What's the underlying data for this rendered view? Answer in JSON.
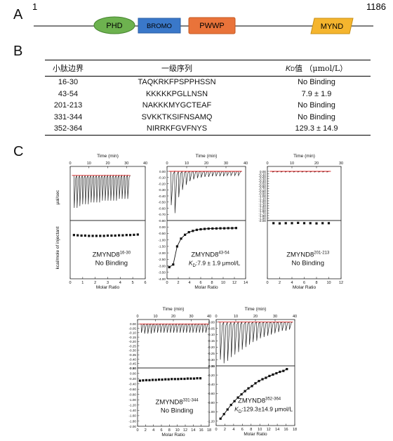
{
  "panels": {
    "a": "A",
    "b": "B",
    "c": "C"
  },
  "domain_map": {
    "start": "1",
    "end": "1186",
    "domains": [
      {
        "label": "PHD",
        "color": "#6db24f",
        "shape": "ellipse"
      },
      {
        "label": "BROMO",
        "color": "#3a78c9",
        "shape": "rect"
      },
      {
        "label": "PWWP",
        "color": "#e9733a",
        "shape": "rect"
      },
      {
        "label": "MYND",
        "color": "#f5b52e",
        "shape": "parallelogram"
      }
    ]
  },
  "table": {
    "headers": [
      "小肽边界",
      "一级序列",
      "值 （μmol/L）"
    ],
    "kd_symbol": "K",
    "kd_sub": "D",
    "rows": [
      [
        "16-30",
        "TAQKRKFPSPPHSSN",
        "No Binding"
      ],
      [
        "43-54",
        "KKKKKPGLLNSN",
        "7.9 ± 1.9"
      ],
      [
        "201-213",
        "NAKKKMYGCTEAF",
        "No Binding"
      ],
      [
        "331-344",
        "SVKKTKSIFNSAMQ",
        "No Binding"
      ],
      [
        "352-364",
        "NIRRKFGVFNYS",
        "129.3 ± 14.9"
      ]
    ]
  },
  "itc": {
    "top_xlabel": "Time (min)",
    "bottom_xlabel": "Molar Ratio",
    "top_ylabel": "μal/sec",
    "bottom_ylabel": "kcal/mole of injectant",
    "plots": [
      {
        "id": "p1",
        "label": "ZMYND8",
        "sup": "16-30",
        "result": "No Binding",
        "kd": ""
      },
      {
        "id": "p2",
        "label": "ZMYND8",
        "sup": "43-54",
        "result": "",
        "kd": ":7.9 ± 1.9 μmol/L"
      },
      {
        "id": "p3",
        "label": "ZMYND8",
        "sup": "201-213",
        "result": "No Binding",
        "kd": ""
      },
      {
        "id": "p4",
        "label": "ZMYND8",
        "sup": "331-344",
        "result": "No Binding",
        "kd": ""
      },
      {
        "id": "p5",
        "label": "ZMYND8",
        "sup": "352-364",
        "result": "",
        "kd": ":129.3±14.9 μmol/L"
      }
    ]
  },
  "chart_data": [
    {
      "type": "line",
      "id": "p1",
      "time_range": [
        0,
        40
      ],
      "time_ticks": [
        0,
        10,
        20,
        30,
        40
      ],
      "raw_ylim": [
        -0.25,
        0.05
      ],
      "raw_ticks": [],
      "ratio_range": [
        0,
        6
      ],
      "ratio_ticks": [
        0,
        1,
        2,
        3,
        4,
        5,
        6
      ],
      "heat_ylim": [
        -2.0,
        0.2
      ],
      "heat_ticks": [],
      "injections": {
        "start": 2,
        "step": 1.5,
        "count": 20
      },
      "peak_depths": [
        -0.18,
        -0.18,
        -0.17,
        -0.16,
        -0.16,
        -0.16,
        -0.15,
        -0.15,
        -0.15,
        -0.15,
        -0.14,
        -0.14,
        -0.14,
        -0.14,
        -0.14,
        -0.14,
        -0.13,
        -0.13,
        -0.13,
        -0.13
      ],
      "heat_x": [
        0.3,
        0.6,
        0.9,
        1.2,
        1.5,
        1.8,
        2.1,
        2.4,
        2.7,
        3.0,
        3.3,
        3.6,
        3.9,
        4.2,
        4.5,
        4.8,
        5.1,
        5.4
      ],
      "heat_y": [
        -0.35,
        -0.36,
        -0.37,
        -0.37,
        -0.38,
        -0.38,
        -0.38,
        -0.38,
        -0.38,
        -0.37,
        -0.37,
        -0.37,
        -0.36,
        -0.36,
        -0.35,
        -0.35,
        -0.34,
        -0.33
      ],
      "fit": false
    },
    {
      "type": "line",
      "id": "p2",
      "time_range": [
        0,
        40
      ],
      "time_ticks": [
        0,
        10,
        20,
        30,
        40
      ],
      "raw_ylim": [
        -0.8,
        0.08
      ],
      "raw_ticks": [
        0.0,
        -0.1,
        -0.2,
        -0.3,
        -0.4,
        -0.5,
        -0.6,
        -0.7,
        -0.8
      ],
      "ratio_range": [
        0,
        14
      ],
      "ratio_ticks": [
        0,
        2,
        4,
        6,
        8,
        10,
        12,
        14
      ],
      "heat_ylim": [
        -4.0,
        0.5
      ],
      "heat_ticks": [
        0.0,
        -0.5,
        -1.0,
        -1.5,
        -2.0,
        -2.5,
        -3.0,
        -3.5,
        -4.0
      ],
      "injections": {
        "start": 2,
        "step": 1.9,
        "count": 19
      },
      "peak_depths": [
        -0.55,
        -0.68,
        -0.42,
        -0.3,
        -0.22,
        -0.16,
        -0.13,
        -0.11,
        -0.1,
        -0.09,
        -0.09,
        -0.08,
        -0.08,
        -0.08,
        -0.08,
        -0.07,
        -0.07,
        -0.07,
        -0.07
      ],
      "heat_x": [
        0.4,
        1.1,
        1.8,
        2.5,
        3.2,
        3.9,
        4.6,
        5.3,
        6.0,
        6.7,
        7.4,
        8.1,
        8.8,
        9.5,
        10.2,
        10.9,
        11.6,
        12.3
      ],
      "heat_y": [
        -3.1,
        -2.9,
        -1.5,
        -0.9,
        -0.6,
        -0.4,
        -0.3,
        -0.22,
        -0.18,
        -0.15,
        -0.13,
        -0.12,
        -0.11,
        -0.1,
        -0.1,
        -0.09,
        -0.09,
        -0.08
      ],
      "fit": true
    },
    {
      "type": "line",
      "id": "p3",
      "time_range": [
        0,
        30
      ],
      "time_ticks": [
        0,
        10,
        20,
        30
      ],
      "raw_ylim": [
        -2.0,
        0.2
      ],
      "raw_ticks": [
        0.0,
        -0.1,
        -0.2,
        -0.3,
        -0.4,
        -0.5,
        -0.6,
        -0.7,
        -0.8,
        -0.9,
        -1.0,
        -1.1,
        -1.2,
        -1.3,
        -1.4,
        -1.5,
        -1.6,
        -1.7,
        -1.8,
        -1.9,
        -2.0
      ],
      "ratio_range": [
        0,
        12
      ],
      "ratio_ticks": [
        0,
        2,
        4,
        6,
        8,
        10,
        12
      ],
      "heat_ylim": [
        -2.0,
        0.2
      ],
      "heat_ticks": [],
      "injections": {
        "start": 2,
        "step": 1.7,
        "count": 14
      },
      "peak_depths": [
        -0.03,
        -0.03,
        -0.03,
        -0.03,
        -0.03,
        -0.03,
        -0.03,
        -0.03,
        -0.03,
        -0.03,
        -0.03,
        -0.03,
        -0.03,
        -0.03
      ],
      "heat_x": [
        1,
        2,
        3,
        4,
        5,
        6,
        7,
        8,
        9,
        10
      ],
      "heat_y": [
        0.1,
        0.09,
        0.1,
        0.1,
        0.11,
        0.1,
        0.1,
        0.09,
        0.1,
        0.1
      ],
      "fit": false
    },
    {
      "type": "line",
      "id": "p4",
      "time_range": [
        0,
        40
      ],
      "time_ticks": [
        0,
        10,
        20,
        30,
        40
      ],
      "raw_ylim": [
        -0.5,
        0.05
      ],
      "raw_ticks": [
        0.0,
        -0.05,
        -0.1,
        -0.15,
        -0.2,
        -0.25,
        -0.3,
        -0.35,
        -0.4,
        -0.45,
        -0.5
      ],
      "ratio_range": [
        0,
        18
      ],
      "ratio_ticks": [
        0,
        2,
        4,
        6,
        8,
        10,
        12,
        14,
        16,
        18
      ],
      "heat_ylim": [
        -2.0,
        0.2
      ],
      "heat_ticks": [
        0.2,
        0.0,
        -0.2,
        -0.4,
        -0.6,
        -0.8,
        -1.0,
        -1.2,
        -1.4,
        -1.6,
        -1.8,
        -2.0
      ],
      "injections": {
        "start": 2,
        "step": 1.8,
        "count": 21
      },
      "peak_depths": [
        -0.1,
        -0.11,
        -0.11,
        -0.11,
        -0.1,
        -0.1,
        -0.1,
        -0.1,
        -0.1,
        -0.1,
        -0.1,
        -0.1,
        -0.1,
        -0.1,
        -0.1,
        -0.1,
        -0.1,
        -0.1,
        -0.1,
        -0.1,
        -0.1
      ],
      "heat_x": [
        0.6,
        1.4,
        2.2,
        3.0,
        3.8,
        4.6,
        5.4,
        6.2,
        7.0,
        7.8,
        8.6,
        9.4,
        10.2,
        11.0,
        11.8,
        12.6,
        13.4,
        14.2,
        15.0,
        15.8
      ],
      "heat_y": [
        -0.28,
        -0.27,
        -0.26,
        -0.26,
        -0.25,
        -0.25,
        -0.24,
        -0.24,
        -0.23,
        -0.23,
        -0.22,
        -0.22,
        -0.22,
        -0.21,
        -0.21,
        -0.2,
        -0.2,
        -0.2,
        -0.19,
        -0.19
      ],
      "fit": false
    },
    {
      "type": "line",
      "id": "p5",
      "time_range": [
        0,
        40
      ],
      "time_ticks": [
        0,
        10,
        20,
        30,
        40
      ],
      "raw_ylim": [
        -0.35,
        0.02
      ],
      "raw_ticks": [
        0.0,
        -0.05,
        -0.1,
        -0.15,
        -0.2,
        -0.25,
        -0.3,
        -0.35
      ],
      "ratio_range": [
        0,
        18
      ],
      "ratio_ticks": [
        0,
        2,
        4,
        6,
        8,
        10,
        12,
        14,
        16,
        18
      ],
      "heat_ylim": [
        -1.3,
        0.0
      ],
      "heat_ticks": [
        0.0,
        -0.2,
        -0.4,
        -0.6,
        -0.8,
        -1.0,
        -1.2
      ],
      "injections": {
        "start": 2,
        "step": 1.85,
        "count": 20
      },
      "peak_depths": [
        -0.3,
        -0.33,
        -0.31,
        -0.28,
        -0.26,
        -0.24,
        -0.22,
        -0.2,
        -0.18,
        -0.16,
        -0.15,
        -0.13,
        -0.12,
        -0.11,
        -0.1,
        -0.09,
        -0.08,
        -0.07,
        -0.07,
        -0.06
      ],
      "heat_x": [
        1.0,
        1.8,
        2.6,
        3.4,
        4.2,
        5.0,
        5.8,
        6.6,
        7.4,
        8.2,
        9.0,
        9.8,
        10.6,
        11.4,
        12.2,
        13.0,
        13.8,
        14.6,
        15.4,
        16.2
      ],
      "heat_y": [
        -1.15,
        -1.05,
        -0.95,
        -0.85,
        -0.77,
        -0.69,
        -0.62,
        -0.55,
        -0.49,
        -0.44,
        -0.38,
        -0.33,
        -0.29,
        -0.26,
        -0.22,
        -0.19,
        -0.16,
        -0.13,
        -0.11,
        -0.07
      ],
      "fit": true
    }
  ]
}
